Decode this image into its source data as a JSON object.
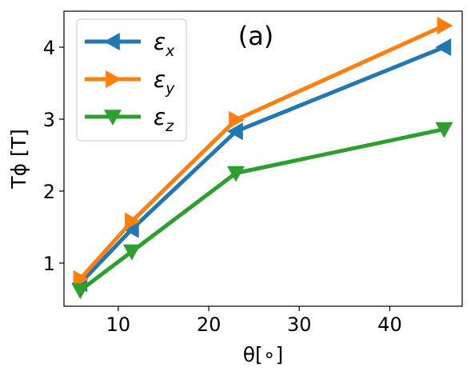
{
  "chart_data": {
    "type": "line",
    "panel_label": "(a)",
    "xlabel": "θ[∘]",
    "ylabel": "Tϕ [T]",
    "xlim": [
      4,
      48
    ],
    "ylim": [
      0.4,
      4.5
    ],
    "xticks": [
      10,
      20,
      30,
      40
    ],
    "yticks": [
      1,
      2,
      3,
      4
    ],
    "grid": false,
    "legend_position": "top-left",
    "series": [
      {
        "name": "εx",
        "symbol": "ε",
        "subscript": "x",
        "color": "#1f77b4",
        "marker": "triangle-left",
        "x": [
          5.8,
          11.5,
          23,
          46
        ],
        "y": [
          0.72,
          1.47,
          2.83,
          4.0
        ]
      },
      {
        "name": "εy",
        "symbol": "ε",
        "subscript": "y",
        "color": "#ff7f0e",
        "marker": "triangle-right",
        "x": [
          5.8,
          11.5,
          23,
          46
        ],
        "y": [
          0.78,
          1.58,
          2.99,
          4.3
        ]
      },
      {
        "name": "εz",
        "symbol": "ε",
        "subscript": "z",
        "color": "#2ca02c",
        "marker": "triangle-down",
        "x": [
          5.8,
          11.5,
          23,
          46
        ],
        "y": [
          0.62,
          1.16,
          2.25,
          2.86
        ]
      }
    ]
  }
}
